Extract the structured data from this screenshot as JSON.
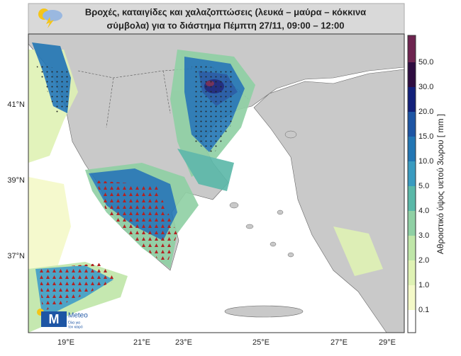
{
  "header": {
    "title_lines": [
      "Βροχές, καταιγίδες και χαλαζοπτώσεις (λευκά – μαύρα – κόκκινα",
      "σύμβολα) για το διάστημα Πέμπτη 27/11, 09:00 – 12:00"
    ]
  },
  "map": {
    "lat_labels": [
      "41°N",
      "39°N",
      "37°N"
    ],
    "lon_labels": [
      "19°E",
      "21°E",
      "23°E",
      "25°E",
      "27°E",
      "29°E"
    ]
  },
  "colorbar": {
    "title": "Αθροιστικό ύψος υετού 3ωρου [ mm ]",
    "labels": [
      "0.1",
      "1.0",
      "2.0",
      "3.0",
      "4.0",
      "5.0",
      "10.0",
      "15.0",
      "20.0",
      "30.0",
      "50.0"
    ],
    "colors": [
      "#ffffff",
      "#f4f9c8",
      "#dff2b4",
      "#bfe6a8",
      "#8fd0a4",
      "#5ab8a8",
      "#3a9bc0",
      "#2276b4",
      "#1d55a4",
      "#12207a",
      "#2e0c40",
      "#6e2450"
    ]
  },
  "logo": {
    "name": "Meteo",
    "tagline": [
      "Όλα για",
      "τον καιρό"
    ]
  }
}
